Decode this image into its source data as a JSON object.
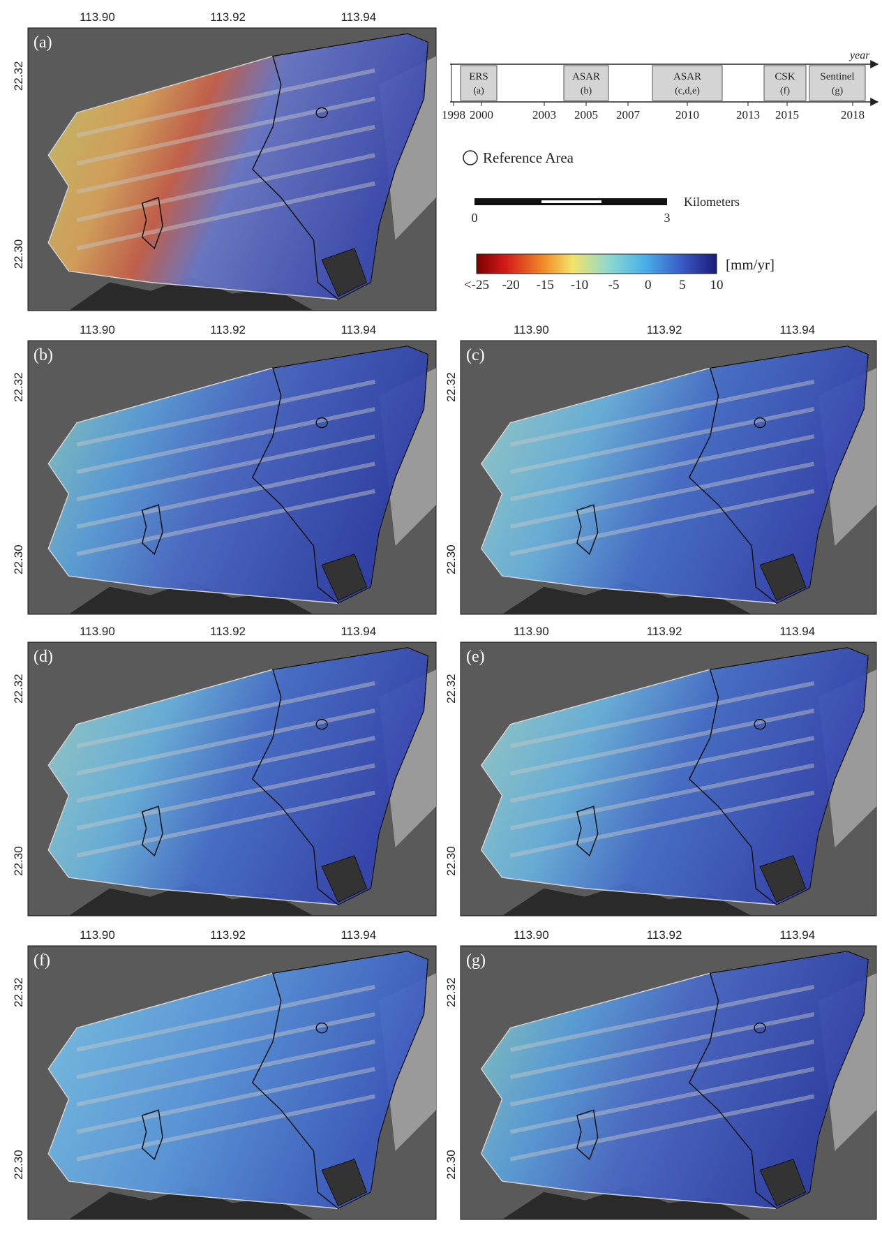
{
  "xticks": [
    "113.90",
    "113.92",
    "113.94"
  ],
  "yticks": [
    "22.32",
    "22.30"
  ],
  "panels": [
    {
      "label": "(a)"
    },
    {
      "label": "(b)"
    },
    {
      "label": "(c)"
    },
    {
      "label": "(d)"
    },
    {
      "label": "(e)"
    },
    {
      "label": "(f)"
    },
    {
      "label": "(g)"
    }
  ],
  "timeline": {
    "axis_label": "year",
    "years": [
      "1998",
      "2000",
      "2003",
      "2005",
      "2007",
      "2010",
      "2013",
      "2015",
      "2018"
    ],
    "missions": [
      {
        "name": "ERS",
        "panel": "(a)"
      },
      {
        "name": "ASAR",
        "panel": "(b)"
      },
      {
        "name": "ASAR",
        "panel": "(c,d,e)"
      },
      {
        "name": "CSK",
        "panel": "(f)"
      },
      {
        "name": "Sentinel",
        "panel": "(g)"
      }
    ]
  },
  "reference_label": "Reference Area",
  "scale_bar": {
    "ticks": [
      "0",
      "3"
    ],
    "unit": "Kilometers"
  },
  "colorbar": {
    "ticks": [
      "<-25",
      "-20",
      "-15",
      "-10",
      "-5",
      "0",
      "5",
      "10"
    ],
    "unit": "[mm/yr]"
  }
}
